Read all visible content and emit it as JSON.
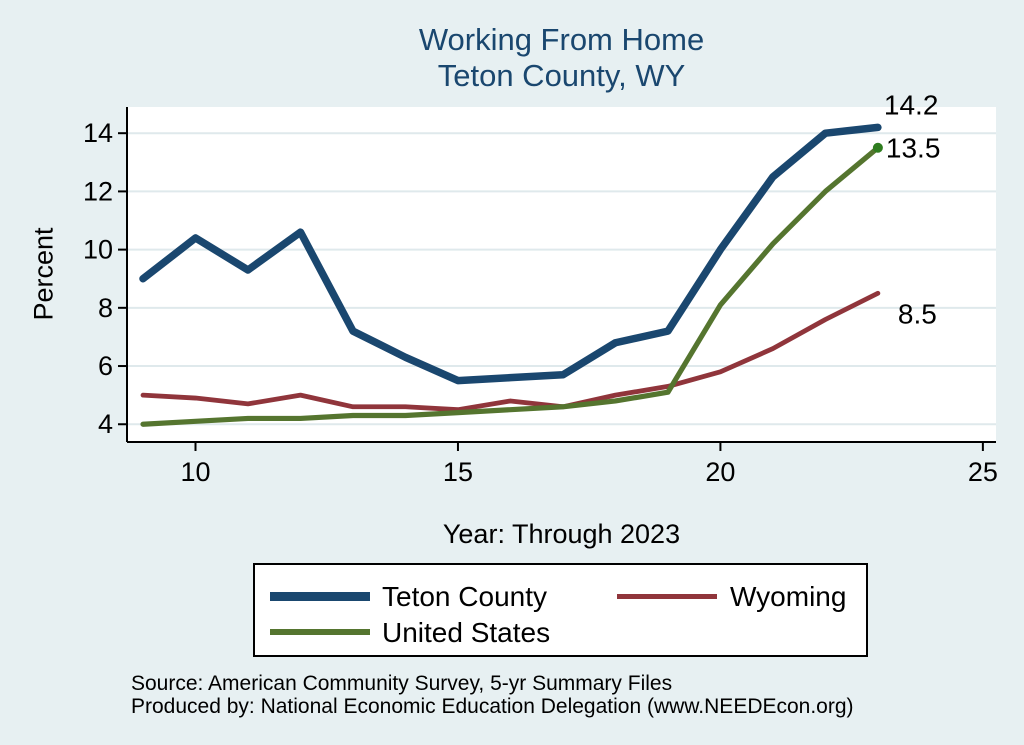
{
  "chart_data": {
    "type": "line",
    "title": "Working From Home",
    "subtitle": "Teton County, WY",
    "xlabel": "Year: Through 2023",
    "ylabel": "Percent",
    "x": [
      9,
      10,
      11,
      12,
      13,
      14,
      15,
      16,
      17,
      18,
      19,
      20,
      21,
      22,
      23
    ],
    "series": [
      {
        "name": "Teton County",
        "color": "#1a476f",
        "line_width": 7.5,
        "values": [
          9.0,
          10.4,
          9.3,
          10.6,
          7.2,
          6.3,
          5.5,
          5.6,
          5.7,
          6.8,
          7.2,
          10.0,
          12.5,
          14.0,
          14.2
        ],
        "end_label": "14.2"
      },
      {
        "name": "Wyoming",
        "color": "#90353b",
        "line_width": 4.8,
        "values": [
          5.0,
          4.9,
          4.7,
          5.0,
          4.6,
          4.6,
          4.5,
          4.8,
          4.6,
          5.0,
          5.3,
          5.8,
          6.6,
          7.6,
          8.5
        ],
        "end_label": "8.5"
      },
      {
        "name": "United States",
        "color": "#55752f",
        "line_width": 5.2,
        "values": [
          4.0,
          4.1,
          4.2,
          4.2,
          4.3,
          4.3,
          4.4,
          4.5,
          4.6,
          4.8,
          5.1,
          8.1,
          10.2,
          12.0,
          13.5
        ],
        "end_label": "13.5",
        "end_marker_color": "#2f7d1f"
      }
    ],
    "x_ticks": [
      10,
      15,
      20,
      25
    ],
    "y_ticks": [
      4,
      6,
      8,
      10,
      12,
      14
    ],
    "xlim": [
      8.695,
      25.25
    ],
    "ylim": [
      3.39,
      14.9
    ],
    "grid": "horizontal",
    "legend_position": "bottom"
  },
  "legend": {
    "items": [
      "Teton County",
      "Wyoming",
      "United States"
    ]
  },
  "footer": {
    "source": "Source: American Community Survey, 5-yr Summary Files",
    "produced_by": "Produced by: National Economic Education Delegation (www.NEEDEcon.org)"
  },
  "colors": {
    "background": "#e7f0f2",
    "plot_background": "#ffffff",
    "gridline": "#dfe9ec",
    "axis": "#000000",
    "title_text": "#1a476f"
  }
}
